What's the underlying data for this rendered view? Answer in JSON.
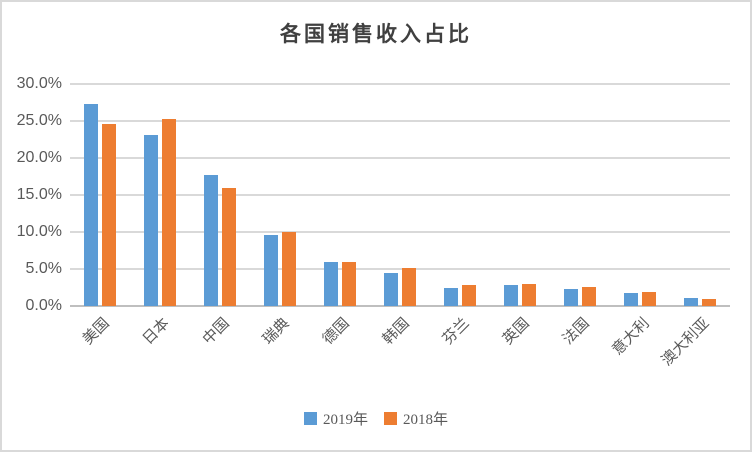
{
  "chart_data": {
    "type": "bar",
    "title": "各国销售收入占比",
    "categories": [
      "美国",
      "日本",
      "中国",
      "瑞典",
      "德国",
      "韩国",
      "芬兰",
      "英国",
      "法国",
      "意大利",
      "澳大利亚"
    ],
    "series": [
      {
        "name": "2019年",
        "color": "#5B9BD5",
        "values": [
          27.3,
          23.1,
          17.7,
          9.6,
          5.9,
          4.4,
          2.5,
          2.8,
          2.3,
          1.7,
          1.1
        ]
      },
      {
        "name": "2018年",
        "color": "#ED7D31",
        "values": [
          24.6,
          25.3,
          16.0,
          10.0,
          6.0,
          5.1,
          2.9,
          3.0,
          2.6,
          1.9,
          1.0
        ]
      }
    ],
    "xlabel": "",
    "ylabel": "",
    "ylim": [
      0,
      30
    ],
    "ytick_step": 5,
    "ytick_labels": [
      "0.0%",
      "5.0%",
      "10.0%",
      "15.0%",
      "20.0%",
      "25.0%",
      "30.0%"
    ],
    "grid": true,
    "legend_position": "bottom",
    "colors": {
      "gridline": "#D9D9D9",
      "axis_line": "#BFBFBF",
      "tick_label": "#595959",
      "title": "#404040",
      "background": "#FFFFFF",
      "border": "#D9D9D9"
    }
  }
}
